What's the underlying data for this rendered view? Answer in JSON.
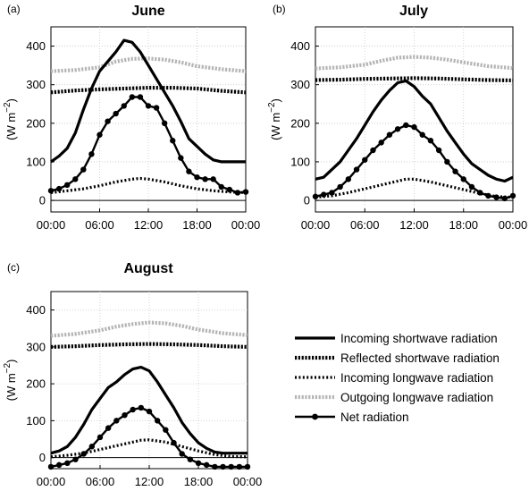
{
  "chart_data": {
    "type": "line",
    "x_ticks": [
      "00:00",
      "06:00",
      "12:00",
      "18:00",
      "00:00"
    ],
    "y_ticks": [
      "0",
      "100",
      "200",
      "300",
      "400"
    ],
    "ylim": [
      -30,
      450
    ],
    "ylabel_base": "(W m",
    "ylabel_sup": "−2",
    "ylabel_close": ")",
    "grid": true,
    "series_meta": [
      {
        "key": "sw_in",
        "name": "Incoming shortwave radiation",
        "color": "#000000",
        "style": "solid"
      },
      {
        "key": "sw_out",
        "name": "Reflected shortwave radiation",
        "color": "#000000",
        "style": "dotted-heavy"
      },
      {
        "key": "lw_in",
        "name": "Incoming longwave radiation",
        "color": "#000000",
        "style": "dotted"
      },
      {
        "key": "lw_out",
        "name": "Outgoing longwave radiation",
        "color": "#b4b4b4",
        "style": "dotted-heavy"
      },
      {
        "key": "net",
        "name": "Net radiation",
        "color": "#000000",
        "style": "line-markers"
      }
    ],
    "panels": [
      {
        "label": "(a)",
        "title": "June",
        "series": {
          "sw_in": {
            "x": [
              0,
              1,
              2,
              3,
              4,
              5,
              6,
              7,
              8,
              9,
              10,
              11,
              12,
              13,
              14,
              15,
              16,
              17,
              18,
              19,
              20,
              21,
              22,
              23,
              24
            ],
            "y": [
              100,
              115,
              135,
              175,
              235,
              290,
              335,
              360,
              385,
              415,
              410,
              385,
              350,
              315,
              280,
              245,
              205,
              160,
              140,
              120,
              105,
              100,
              100,
              100,
              100
            ]
          },
          "sw_out": {
            "x": [
              0,
              3,
              6,
              9,
              12,
              15,
              18,
              21,
              24
            ],
            "y": [
              280,
              285,
              288,
              290,
              292,
              292,
              290,
              284,
              280
            ]
          },
          "lw_in": {
            "x": [
              0,
              2,
              4,
              6,
              8,
              10,
              11,
              12,
              14,
              16,
              18,
              20,
              22,
              24
            ],
            "y": [
              20,
              25,
              30,
              38,
              48,
              55,
              57,
              55,
              48,
              38,
              30,
              25,
              22,
              20
            ]
          },
          "lw_out": {
            "x": [
              0,
              3,
              6,
              8,
              10,
              12,
              14,
              16,
              18,
              21,
              24
            ],
            "y": [
              335,
              338,
              345,
              360,
              367,
              368,
              365,
              358,
              348,
              340,
              335
            ]
          },
          "net": {
            "x": [
              0,
              1,
              2,
              3,
              4,
              5,
              6,
              7,
              8,
              9,
              10,
              11,
              12,
              13,
              14,
              15,
              16,
              17,
              18,
              19,
              20,
              21,
              22,
              23,
              24
            ],
            "y": [
              25,
              30,
              40,
              55,
              80,
              120,
              170,
              205,
              225,
              245,
              268,
              268,
              245,
              240,
              200,
              155,
              110,
              75,
              60,
              55,
              55,
              35,
              28,
              20,
              22
            ]
          }
        }
      },
      {
        "label": "(b)",
        "title": "July",
        "series": {
          "sw_in": {
            "x": [
              0,
              1,
              2,
              3,
              4,
              5,
              6,
              7,
              8,
              9,
              10,
              11,
              12,
              13,
              14,
              15,
              16,
              17,
              18,
              19,
              20,
              21,
              22,
              23,
              24
            ],
            "y": [
              55,
              60,
              80,
              100,
              130,
              160,
              195,
              230,
              260,
              285,
              305,
              310,
              295,
              270,
              250,
              215,
              180,
              150,
              120,
              95,
              80,
              65,
              55,
              50,
              60
            ]
          },
          "sw_out": {
            "x": [
              0,
              3,
              6,
              9,
              12,
              15,
              18,
              21,
              24
            ],
            "y": [
              312,
              313,
              315,
              316,
              317,
              316,
              314,
              312,
              311
            ]
          },
          "lw_in": {
            "x": [
              0,
              2,
              4,
              6,
              8,
              10,
              11,
              12,
              14,
              16,
              18,
              20,
              22,
              24
            ],
            "y": [
              8,
              12,
              20,
              30,
              40,
              50,
              55,
              55,
              48,
              38,
              28,
              18,
              10,
              8
            ]
          },
          "lw_out": {
            "x": [
              0,
              3,
              6,
              8,
              10,
              12,
              14,
              16,
              18,
              21,
              24
            ],
            "y": [
              342,
              345,
              352,
              362,
              370,
              372,
              370,
              365,
              358,
              348,
              343
            ]
          },
          "net": {
            "x": [
              0,
              1,
              2,
              3,
              4,
              5,
              6,
              7,
              8,
              9,
              10,
              11,
              12,
              13,
              14,
              15,
              16,
              17,
              18,
              19,
              20,
              21,
              22,
              23,
              24
            ],
            "y": [
              10,
              15,
              20,
              35,
              55,
              80,
              105,
              130,
              150,
              170,
              185,
              195,
              190,
              170,
              155,
              130,
              100,
              75,
              55,
              35,
              20,
              12,
              8,
              5,
              12
            ]
          }
        }
      },
      {
        "label": "(c)",
        "title": "August",
        "series": {
          "sw_in": {
            "x": [
              0,
              1,
              2,
              3,
              4,
              5,
              6,
              7,
              8,
              9,
              10,
              11,
              12,
              13,
              14,
              15,
              16,
              17,
              18,
              19,
              20,
              21,
              22,
              23,
              24
            ],
            "y": [
              12,
              18,
              30,
              55,
              90,
              130,
              160,
              190,
              205,
              225,
              240,
              245,
              235,
              205,
              170,
              135,
              95,
              65,
              40,
              25,
              15,
              12,
              12,
              12,
              12
            ]
          },
          "sw_out": {
            "x": [
              0,
              3,
              6,
              9,
              12,
              15,
              18,
              21,
              24
            ],
            "y": [
              300,
              302,
              305,
              307,
              308,
              307,
              305,
              302,
              300
            ]
          },
          "lw_in": {
            "x": [
              0,
              2,
              4,
              6,
              8,
              10,
              11,
              12,
              14,
              16,
              18,
              20,
              22,
              24
            ],
            "y": [
              2,
              6,
              12,
              22,
              32,
              42,
              47,
              48,
              42,
              30,
              18,
              8,
              3,
              2
            ]
          },
          "lw_out": {
            "x": [
              0,
              3,
              6,
              8,
              10,
              12,
              14,
              16,
              18,
              21,
              24
            ],
            "y": [
              330,
              335,
              345,
              355,
              362,
              366,
              364,
              357,
              347,
              337,
              332
            ]
          },
          "net": {
            "x": [
              0,
              1,
              2,
              3,
              4,
              5,
              6,
              7,
              8,
              9,
              10,
              11,
              12,
              13,
              14,
              15,
              16,
              17,
              18,
              19,
              20,
              21,
              22,
              23,
              24
            ],
            "y": [
              -25,
              -20,
              -15,
              -5,
              10,
              30,
              55,
              80,
              100,
              115,
              130,
              135,
              125,
              100,
              75,
              40,
              10,
              -5,
              -15,
              -20,
              -25,
              -25,
              -25,
              -25,
              -25
            ]
          }
        }
      }
    ]
  }
}
